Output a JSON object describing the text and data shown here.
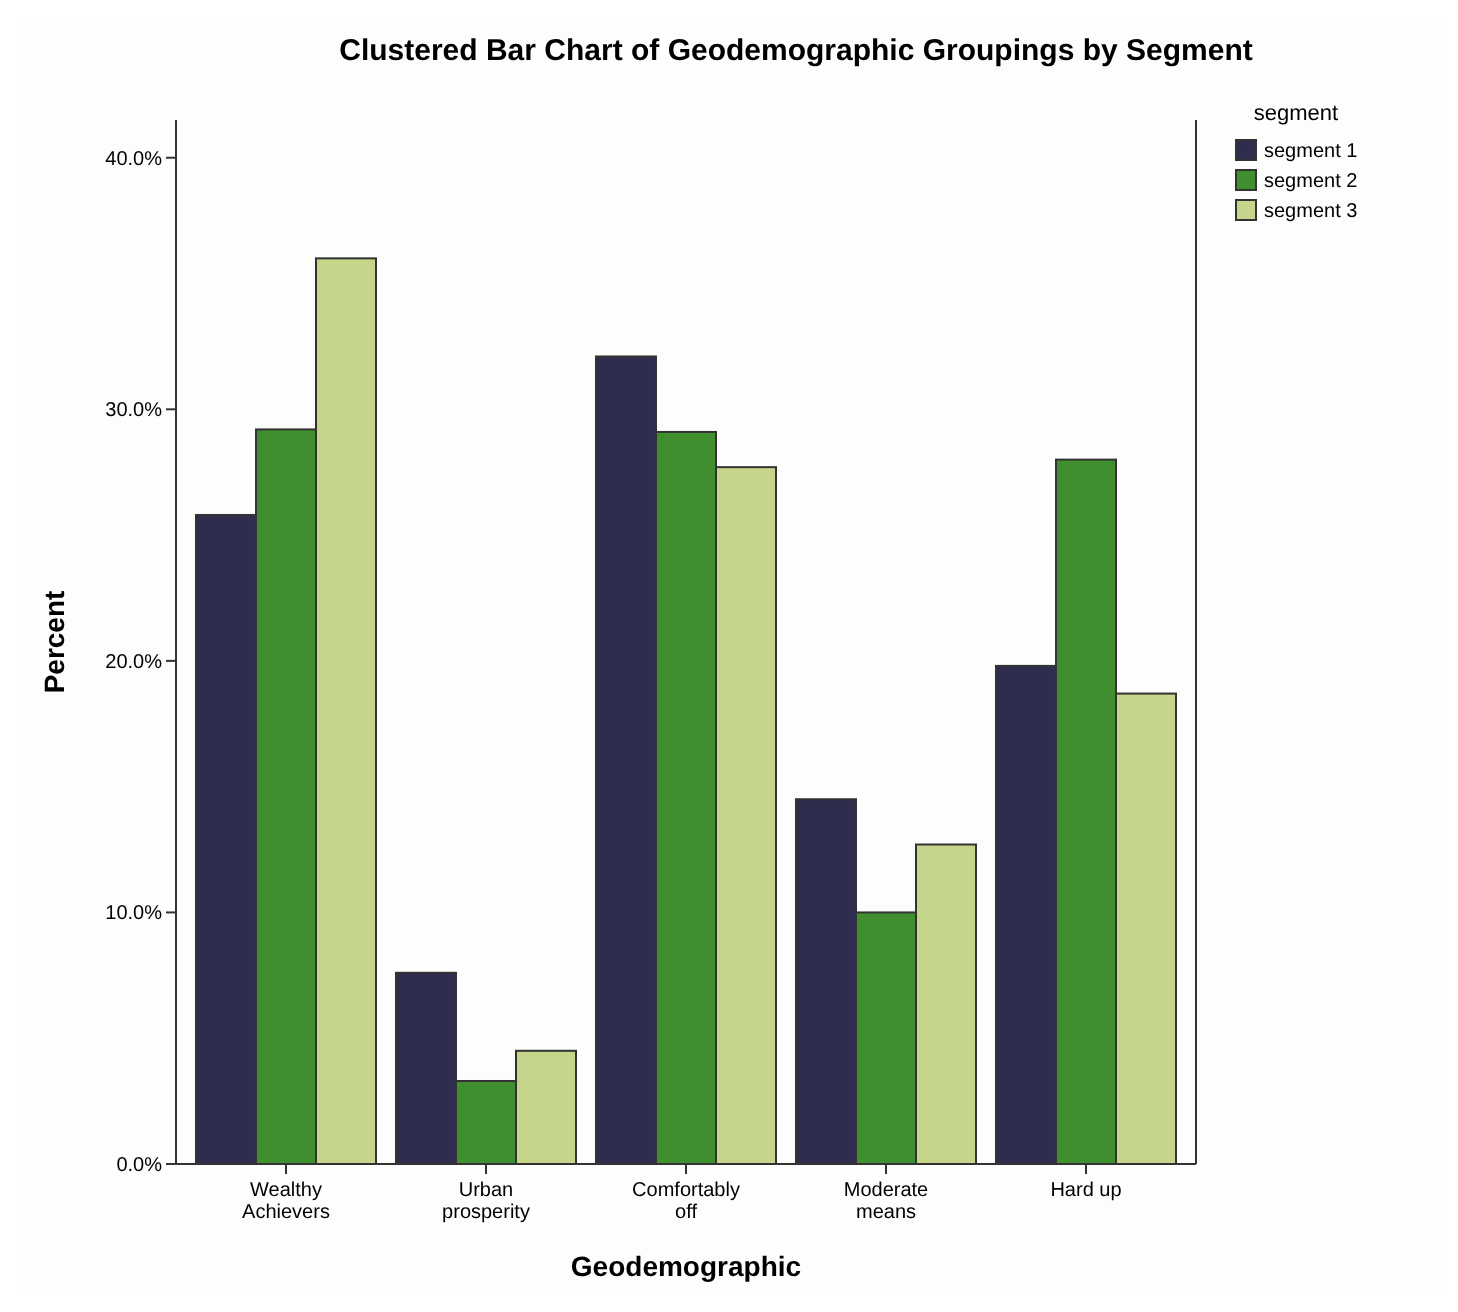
{
  "chart_data": {
    "type": "bar",
    "title": "Clustered Bar Chart of Geodemographic Groupings by Segment",
    "xlabel": "Geodemographic",
    "ylabel": "Percent",
    "legend_title": "segment",
    "legend": "top right",
    "categories": [
      "Wealthy\nAchievers",
      "Urban\nprosperity",
      "Comfortably\noff",
      "Moderate\nmeans",
      "Hard up"
    ],
    "series": [
      {
        "name": "segment 1",
        "color": "#2e2d4d",
        "values": [
          25.8,
          7.6,
          32.1,
          14.5,
          19.8
        ]
      },
      {
        "name": "segment 2",
        "color": "#3f8f2f",
        "values": [
          29.2,
          3.3,
          29.1,
          10.0,
          28.0
        ]
      },
      {
        "name": "segment 3",
        "color": "#c5d68a",
        "values": [
          36.0,
          4.5,
          27.7,
          12.7,
          18.7
        ]
      }
    ],
    "ylim": [
      0,
      41.5
    ],
    "yticks": [
      {
        "value": 0,
        "label": "0.0%"
      },
      {
        "value": 10,
        "label": "10.0%"
      },
      {
        "value": 20,
        "label": "20.0%"
      },
      {
        "value": 30,
        "label": "30.0%"
      },
      {
        "value": 40,
        "label": "40.0%"
      }
    ],
    "grid": false
  }
}
